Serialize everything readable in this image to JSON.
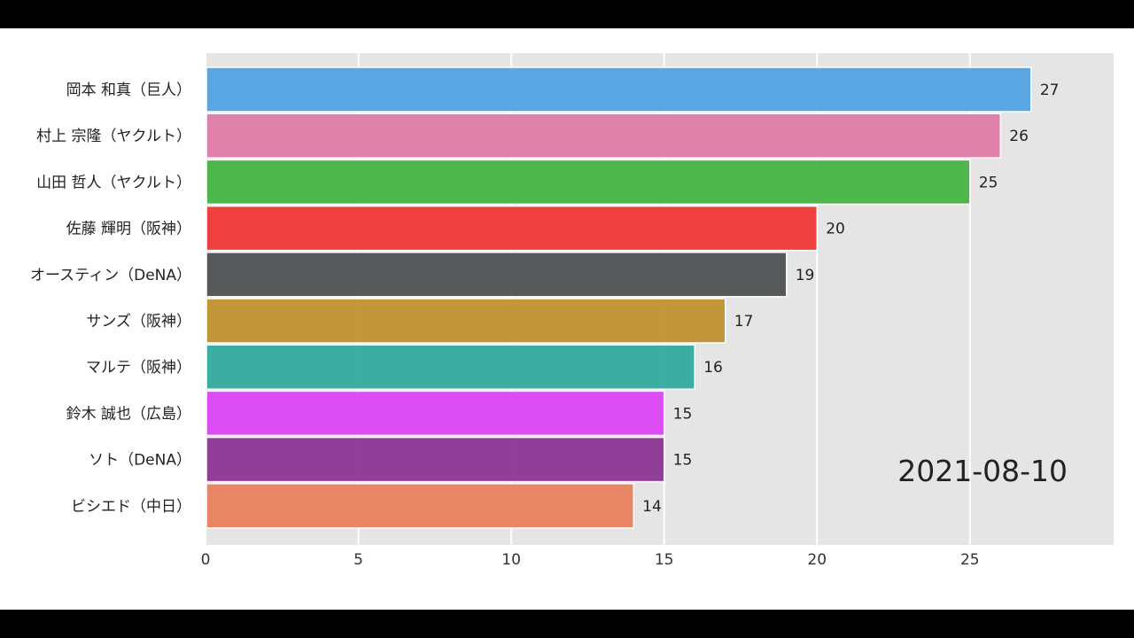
{
  "chart_data": {
    "type": "bar",
    "orientation": "horizontal",
    "categories": [
      "岡本 和真（巨人）",
      "村上 宗隆（ヤクルト）",
      "山田 哲人（ヤクルト）",
      "佐藤 輝明（阪神）",
      "オースティン（DeNA）",
      "サンズ（阪神）",
      "マルテ（阪神）",
      "鈴木 誠也（広島）",
      "ソト（DeNA）",
      "ビシエド（中日）"
    ],
    "values": [
      27,
      26,
      25,
      20,
      19,
      17,
      16,
      15,
      15,
      14
    ],
    "colors": [
      "#52a2e2",
      "#df7ba6",
      "#44b343",
      "#ee3737",
      "#4d5151",
      "#c0922f",
      "#33aa9d",
      "#d946f4",
      "#8b3594",
      "#e8805d"
    ],
    "x_ticks": [
      "0",
      "5",
      "10",
      "15",
      "20",
      "25"
    ],
    "xlim": [
      0,
      29.7
    ],
    "grid": true,
    "background": "#e5e5e5",
    "date": "2021-08-10"
  }
}
